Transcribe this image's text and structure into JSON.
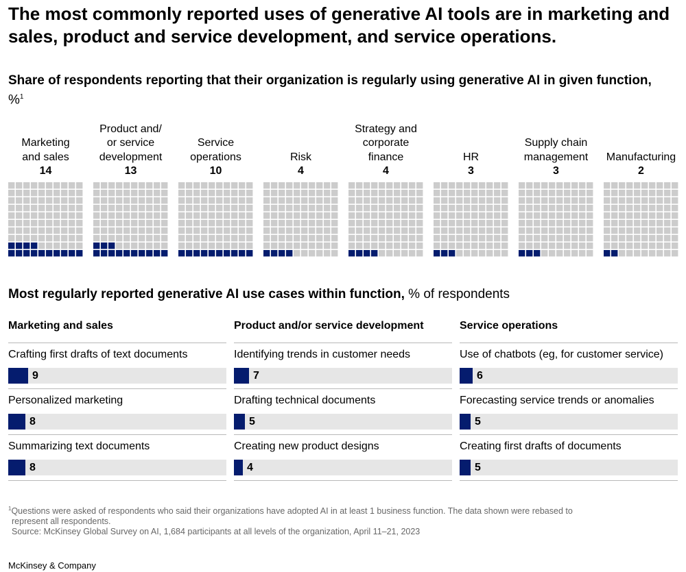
{
  "title": "The most commonly reported uses of generative AI tools are in marketing and sales, product and service development, and service operations.",
  "subtitle": {
    "bold": "Share of respondents reporting that their organization is regularly using generative AI in given function,",
    "unit": "%",
    "footnote_mark": "1"
  },
  "subtitle2": {
    "bold": "Most regularly reported generative AI use cases within function,",
    "unit": "% of respondents"
  },
  "colors": {
    "filled": "#051c6e",
    "empty": "#cccccc",
    "track": "#e6e6e6"
  },
  "chart_data": [
    {
      "type": "waffle",
      "total_cells": 100,
      "categories": [
        {
          "label_lines": [
            "Marketing",
            "and sales"
          ],
          "value": 14
        },
        {
          "label_lines": [
            "Product and/",
            "or service",
            "development"
          ],
          "value": 13
        },
        {
          "label_lines": [
            "Service",
            "operations"
          ],
          "value": 10
        },
        {
          "label_lines": [
            "Risk"
          ],
          "value": 4
        },
        {
          "label_lines": [
            "Strategy and",
            "corporate",
            "finance"
          ],
          "value": 4
        },
        {
          "label_lines": [
            "HR"
          ],
          "value": 3
        },
        {
          "label_lines": [
            "Supply chain",
            "management"
          ],
          "value": 3
        },
        {
          "label_lines": [
            "Manufacturing"
          ],
          "value": 2
        }
      ]
    },
    {
      "type": "bar",
      "xlim": [
        0,
        100
      ],
      "groups": [
        {
          "heading": "Marketing and sales",
          "items": [
            {
              "label": "Crafting first drafts of text documents",
              "value": 9
            },
            {
              "label": "Personalized marketing",
              "value": 8
            },
            {
              "label": "Summarizing text documents",
              "value": 8
            }
          ]
        },
        {
          "heading": "Product and/or service development",
          "items": [
            {
              "label": "Identifying trends in customer needs",
              "value": 7
            },
            {
              "label": "Drafting technical documents",
              "value": 5
            },
            {
              "label": "Creating new product designs",
              "value": 4
            }
          ]
        },
        {
          "heading": "Service operations",
          "items": [
            {
              "label": "Use of chatbots (eg, for customer service)",
              "value": 6
            },
            {
              "label": "Forecasting service trends or anomalies",
              "value": 5
            },
            {
              "label": "Creating first drafts of documents",
              "value": 5
            }
          ]
        }
      ]
    }
  ],
  "footnote": {
    "mark": "1",
    "line1": "Questions were asked of respondents who said their organizations have adopted AI in at least 1 business function. The data shown were rebased to",
    "line2": "represent all respondents.",
    "source": "Source: McKinsey Global Survey on AI, 1,684 participants at all levels of the organization, April 11–21, 2023"
  },
  "brand": "McKinsey & Company"
}
